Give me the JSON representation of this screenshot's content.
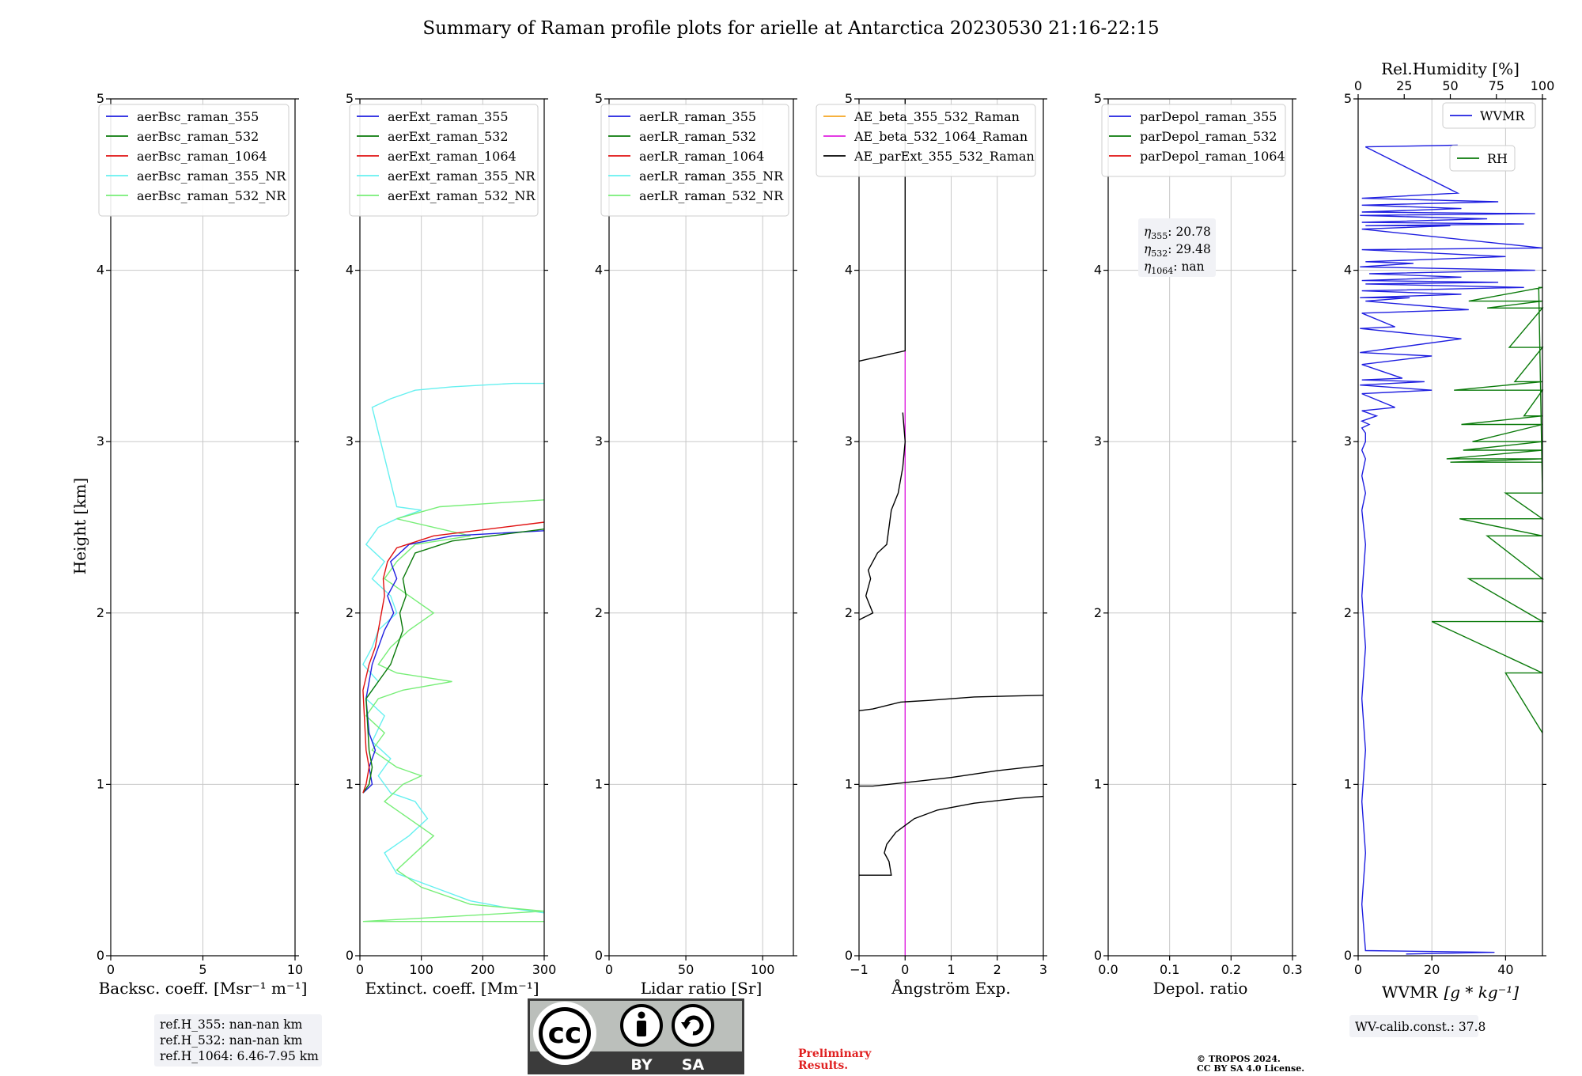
{
  "figure": {
    "title": "Summary of Raman profile plots for arielle at Antarctica 20230530 21:16-22:15",
    "ylabel": "Height [km]"
  },
  "chart_data": [
    {
      "type": "line",
      "id": "bsc",
      "xlabel": "Backsc. coeff. [Msr⁻¹ m⁻¹]",
      "xlim": [
        0,
        10
      ],
      "ylim": [
        0,
        5
      ],
      "xticks": [
        0,
        5,
        10
      ],
      "yticks": [
        0,
        1,
        2,
        3,
        4,
        5
      ],
      "legend": [
        "aerBsc_raman_355",
        "aerBsc_raman_532",
        "aerBsc_raman_1064",
        "aerBsc_raman_355_NR",
        "aerBsc_raman_532_NR"
      ],
      "legend_colors": [
        "#1f1fe0",
        "#0a7a0a",
        "#e01010",
        "#66f0f0",
        "#77ee77"
      ],
      "series": []
    },
    {
      "type": "line",
      "id": "ext",
      "xlabel": "Extinct. coeff. [Mm⁻¹]",
      "xlim": [
        0,
        300
      ],
      "ylim": [
        0,
        5
      ],
      "xticks": [
        0,
        100,
        200,
        300
      ],
      "yticks": [
        0,
        1,
        2,
        3,
        4,
        5
      ],
      "legend": [
        "aerExt_raman_355",
        "aerExt_raman_532",
        "aerExt_raman_1064",
        "aerExt_raman_355_NR",
        "aerExt_raman_532_NR"
      ],
      "legend_colors": [
        "#1f1fe0",
        "#0a7a0a",
        "#e01010",
        "#66f0f0",
        "#77ee77"
      ],
      "series": [
        {
          "name": "aerExt_raman_355_NR",
          "color": "#66f0f0",
          "x": [
            300,
            240,
            180,
            120,
            60,
            40,
            80,
            110,
            90,
            50,
            30,
            50,
            20,
            40,
            10,
            30,
            5,
            20,
            30,
            60,
            50,
            20,
            40,
            10,
            30,
            60,
            100,
            60,
            20,
            50,
            90,
            150,
            250,
            300
          ],
          "y": [
            0.25,
            0.28,
            0.32,
            0.4,
            0.48,
            0.6,
            0.7,
            0.8,
            0.9,
            0.95,
            1.05,
            1.15,
            1.25,
            1.4,
            1.5,
            1.6,
            1.7,
            1.8,
            1.9,
            2.0,
            2.1,
            2.2,
            2.3,
            2.4,
            2.5,
            2.55,
            2.6,
            2.62,
            3.2,
            3.25,
            3.3,
            3.32,
            3.34,
            3.34
          ]
        },
        {
          "name": "aerExt_raman_532_NR",
          "color": "#77ee77",
          "x": [
            300,
            5,
            300,
            180,
            100,
            60,
            120,
            80,
            40,
            70,
            100,
            60,
            20,
            40,
            10,
            30,
            70,
            150,
            60,
            30,
            50,
            80,
            120,
            80,
            40,
            60,
            90,
            180,
            60,
            130,
            300
          ],
          "y": [
            0.2,
            0.2,
            0.26,
            0.3,
            0.4,
            0.5,
            0.7,
            0.8,
            0.9,
            1.0,
            1.05,
            1.1,
            1.2,
            1.3,
            1.4,
            1.5,
            1.55,
            1.6,
            1.65,
            1.7,
            1.8,
            1.9,
            2.0,
            2.1,
            2.2,
            2.3,
            2.4,
            2.45,
            2.55,
            2.62,
            2.66
          ]
        },
        {
          "name": "aerExt_raman_355",
          "color": "#1f1fe0",
          "x": [
            5,
            20,
            15,
            25,
            15,
            10,
            20,
            30,
            40,
            55,
            45,
            60,
            50,
            80,
            150,
            300
          ],
          "y": [
            0.95,
            1.0,
            1.1,
            1.2,
            1.3,
            1.5,
            1.7,
            1.8,
            1.9,
            2.0,
            2.1,
            2.2,
            2.3,
            2.4,
            2.45,
            2.48
          ]
        },
        {
          "name": "aerExt_raman_532",
          "color": "#0a7a0a",
          "x": [
            5,
            15,
            20,
            15,
            10,
            30,
            50,
            60,
            70,
            65,
            75,
            70,
            90,
            150,
            300
          ],
          "y": [
            0.95,
            1.0,
            1.1,
            1.2,
            1.5,
            1.6,
            1.7,
            1.8,
            1.9,
            2.0,
            2.1,
            2.2,
            2.35,
            2.42,
            2.49
          ]
        },
        {
          "name": "aerExt_raman_1064",
          "color": "#e01010",
          "x": [
            5,
            10,
            15,
            10,
            5,
            15,
            25,
            30,
            35,
            40,
            38,
            45,
            60,
            120,
            300
          ],
          "y": [
            0.95,
            1.0,
            1.1,
            1.2,
            1.55,
            1.7,
            1.8,
            1.9,
            2.0,
            2.1,
            2.2,
            2.3,
            2.38,
            2.45,
            2.53
          ]
        }
      ]
    },
    {
      "type": "line",
      "id": "lr",
      "xlabel": "Lidar ratio [Sr]",
      "xlim": [
        0,
        120
      ],
      "ylim": [
        0,
        5
      ],
      "xticks": [
        0,
        50,
        100
      ],
      "yticks": [
        0,
        1,
        2,
        3,
        4,
        5
      ],
      "legend": [
        "aerLR_raman_355",
        "aerLR_raman_532",
        "aerLR_raman_1064",
        "aerLR_raman_355_NR",
        "aerLR_raman_532_NR"
      ],
      "legend_colors": [
        "#1f1fe0",
        "#0a7a0a",
        "#e01010",
        "#66f0f0",
        "#77ee77"
      ],
      "series": []
    },
    {
      "type": "line",
      "id": "ae",
      "xlabel": "Ångström Exp.",
      "xlim": [
        -1,
        3
      ],
      "ylim": [
        0,
        5
      ],
      "xticks": [
        -1,
        0,
        1,
        2,
        3
      ],
      "xticklabels": [
        "−1",
        "0",
        "1",
        "2",
        "3"
      ],
      "yticks": [
        0,
        1,
        2,
        3,
        4,
        5
      ],
      "legend": [
        "AE_beta_355_532_Raman",
        "AE_beta_532_1064_Raman",
        "AE_parExt_355_532_Raman"
      ],
      "legend_colors": [
        "#f5a623",
        "#e020e0",
        "#000000"
      ],
      "series": [
        {
          "name": "AE_beta_532_1064_Raman",
          "color": "#e020e0",
          "x": [
            0,
            0
          ],
          "y": [
            0,
            3.53
          ]
        },
        {
          "name": "AE_parExt_355_532_Raman (1)",
          "color": "#000000",
          "x": [
            -1,
            -0.3,
            -0.35,
            -0.45,
            -0.4,
            -0.2,
            0.2,
            0.7,
            1.5,
            2.5,
            3
          ],
          "y": [
            0.47,
            0.47,
            0.55,
            0.6,
            0.65,
            0.72,
            0.8,
            0.85,
            0.89,
            0.92,
            0.93
          ]
        },
        {
          "name": "AE_parExt_355_532_Raman (2)",
          "color": "#000000",
          "x": [
            -1,
            -0.7,
            0,
            1,
            2,
            3
          ],
          "y": [
            0.99,
            0.99,
            1.01,
            1.04,
            1.08,
            1.11
          ]
        },
        {
          "name": "AE_parExt_355_532_Raman (3)",
          "color": "#000000",
          "x": [
            -1,
            -0.7,
            -0.1,
            0.5,
            1.5,
            3
          ],
          "y": [
            1.43,
            1.44,
            1.48,
            1.49,
            1.51,
            1.52
          ]
        },
        {
          "name": "AE_parExt_355_532_Raman (4)",
          "color": "#000000",
          "x": [
            -1,
            -0.7,
            -0.85,
            -0.75,
            -0.8,
            -0.6,
            -0.4,
            -0.35,
            -0.3,
            -0.15,
            -0.05,
            0,
            -0.05
          ],
          "y": [
            1.96,
            2.0,
            2.1,
            2.2,
            2.25,
            2.35,
            2.4,
            2.5,
            2.6,
            2.7,
            2.85,
            3.0,
            3.17
          ]
        },
        {
          "name": "AE_parExt_355_532_Raman (5)",
          "color": "#000000",
          "x": [
            -1,
            0,
            0,
            0
          ],
          "y": [
            3.47,
            3.53,
            4.5,
            5.0
          ]
        }
      ]
    },
    {
      "type": "line",
      "id": "depol",
      "xlabel": "Depol. ratio",
      "xlim": [
        0,
        0.3
      ],
      "ylim": [
        0,
        5
      ],
      "xticks": [
        0,
        0.1,
        0.2,
        0.3
      ],
      "xticklabels": [
        "0.0",
        "0.1",
        "0.2",
        "0.3"
      ],
      "yticks": [
        0,
        1,
        2,
        3,
        4,
        5
      ],
      "legend": [
        "parDepol_raman_355",
        "parDepol_raman_532",
        "parDepol_raman_1064"
      ],
      "legend_colors": [
        "#1f1fe0",
        "#0a7a0a",
        "#e01010"
      ],
      "annotation": [
        {
          "sym": "η",
          "sub": "355",
          "value": ": 20.78"
        },
        {
          "sym": "η",
          "sub": "532",
          "value": ": 29.48"
        },
        {
          "sym": "η",
          "sub": "1064",
          "value": ": nan"
        }
      ],
      "series": []
    },
    {
      "type": "line",
      "id": "wv",
      "xlabel": "WVMR",
      "xlabel_unit": "[g * kg⁻¹]",
      "xlim": [
        0,
        50
      ],
      "ylim": [
        0,
        5
      ],
      "xticks": [
        0,
        20,
        40
      ],
      "yticks": [
        0,
        1,
        2,
        3,
        4,
        5
      ],
      "top_axis": {
        "label": "Rel.Humidity [%]",
        "lim": [
          0,
          100
        ],
        "ticks": [
          0,
          25,
          50,
          75,
          100
        ]
      },
      "legend": [
        "WVMR",
        "RH"
      ],
      "legend_colors": [
        "#1f1fe0",
        "#0a7a0a"
      ],
      "annotation_text": "WV-calib.const.: 37.8",
      "series": [
        {
          "name": "WVMR",
          "color": "#1f1fe0",
          "axis": "bottom",
          "x": [
            13,
            37,
            2,
            1,
            2,
            1,
            2,
            1,
            2,
            1,
            2,
            1,
            2,
            1,
            2,
            1,
            2,
            2,
            1,
            3,
            1,
            5,
            1,
            10,
            1,
            20,
            0.5,
            18,
            1,
            12,
            1,
            20,
            0.5,
            28,
            0.5,
            10,
            1,
            30,
            2,
            14,
            0.5,
            28,
            1,
            45,
            2,
            38,
            1,
            28,
            3,
            48,
            0.5,
            15,
            2,
            40,
            1,
            50,
            1,
            25,
            2,
            45,
            1,
            35,
            0.5,
            48,
            1,
            28,
            1,
            38,
            1,
            27,
            2,
            27
          ],
          "y": [
            0.01,
            0.02,
            0.03,
            0.3,
            0.6,
            0.9,
            1.2,
            1.5,
            1.8,
            2.1,
            2.4,
            2.6,
            2.7,
            2.8,
            2.9,
            2.95,
            3.0,
            3.05,
            3.08,
            3.1,
            3.12,
            3.15,
            3.18,
            3.2,
            3.28,
            3.3,
            3.33,
            3.35,
            3.36,
            3.37,
            3.45,
            3.5,
            3.52,
            3.6,
            3.66,
            3.67,
            3.75,
            3.77,
            3.82,
            3.84,
            3.84,
            3.86,
            3.88,
            3.9,
            3.92,
            3.93,
            3.94,
            3.96,
            3.98,
            4.0,
            4.02,
            4.04,
            4.05,
            4.08,
            4.12,
            4.13,
            4.24,
            4.26,
            4.26,
            4.27,
            4.28,
            4.3,
            4.32,
            4.33,
            4.34,
            4.36,
            4.38,
            4.4,
            4.42,
            4.45,
            4.72,
            4.73
          ]
        },
        {
          "name": "RH",
          "color": "#0a7a0a",
          "axis": "top",
          "x": [
            100,
            50,
            100,
            48,
            100,
            57,
            100,
            62,
            100,
            56,
            100,
            90,
            100,
            52,
            100,
            85,
            100,
            82,
            100,
            70,
            100,
            60,
            100,
            98,
            100,
            80,
            100,
            55,
            100,
            70,
            100,
            60,
            100,
            40,
            100,
            80,
            100,
            100
          ],
          "y": [
            2.88,
            2.88,
            2.9,
            2.9,
            2.95,
            2.95,
            3.0,
            3.0,
            3.1,
            3.1,
            3.15,
            3.15,
            3.3,
            3.3,
            3.35,
            3.35,
            3.55,
            3.55,
            3.78,
            3.78,
            3.82,
            3.82,
            3.9,
            3.9,
            2.7,
            2.7,
            2.55,
            2.55,
            2.45,
            2.45,
            2.2,
            2.2,
            1.95,
            1.95,
            1.65,
            1.65,
            1.3,
            1.3
          ]
        }
      ]
    }
  ],
  "footer": {
    "refH_355": "ref.H_355: nan-nan km",
    "refH_532": "ref.H_532: nan-nan km",
    "refH_1064": "ref.H_1064: 6.46-7.95 km",
    "preliminary_1": "Preliminary",
    "preliminary_2": "Results.",
    "copyright_1": "© TROPOS 2024.",
    "copyright_2": "CC BY SA 4.0 License.",
    "cc_logo_text": "cc",
    "cc_by": "BY",
    "cc_sa": "SA"
  },
  "colors": {
    "preliminary": "#e02020",
    "cc_grey": "#bbbfbb",
    "cc_dark": "#3b3b3b"
  }
}
